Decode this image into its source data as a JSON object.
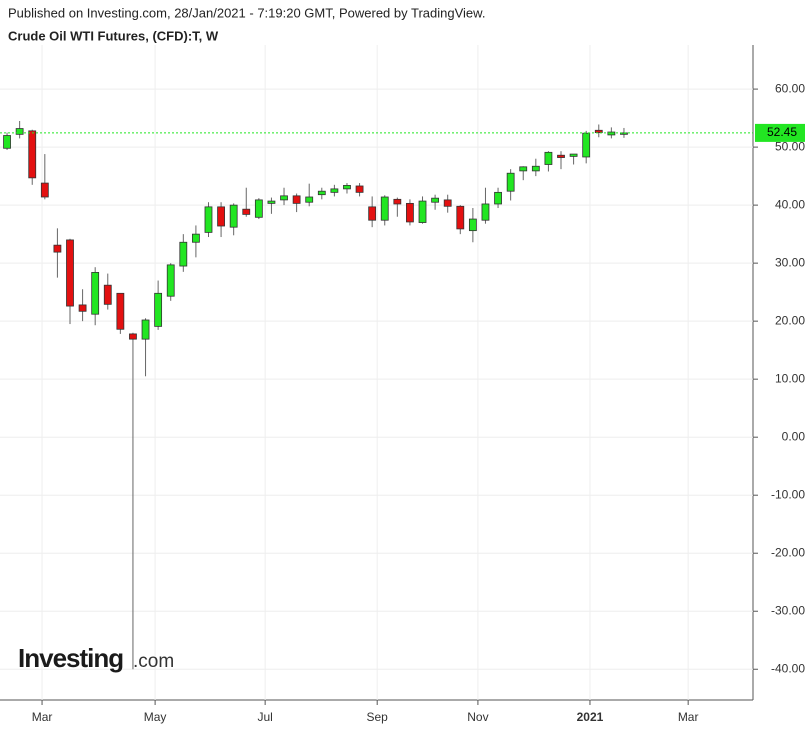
{
  "header": {
    "published": "Published on Investing.com, 28/Jan/2021 - 7:19:20 GMT, Powered by TradingView.",
    "title": "Crude Oil WTI Futures, (CFD):T, W"
  },
  "logo": {
    "main": "Investing",
    "suffix": ".com"
  },
  "chart_data": {
    "type": "candlestick",
    "categories": [
      null,
      null,
      null,
      null,
      null,
      null,
      null,
      null,
      null,
      null,
      null,
      null,
      null,
      null,
      null,
      null,
      null,
      null,
      null,
      null,
      null,
      null,
      null,
      null,
      null,
      null,
      null,
      null,
      null,
      null,
      null,
      null,
      null,
      null,
      null,
      null,
      null,
      null,
      null,
      null,
      null,
      null,
      null,
      null,
      null,
      null,
      null,
      null,
      null,
      null
    ],
    "open": [
      49.8,
      52.2,
      52.8,
      43.8,
      33.1,
      34,
      22.8,
      21.2,
      26.2,
      24.8,
      17.8,
      16.9,
      19.1,
      24.3,
      29.5,
      33.6,
      35.3,
      39.7,
      36.2,
      39.3,
      37.9,
      40.3,
      40.9,
      41.6,
      40.5,
      41.8,
      42.2,
      42.8,
      43.3,
      39.7,
      37.4,
      41,
      40.3,
      37,
      40.5,
      40.9,
      39.8,
      35.6,
      37.4,
      40.2,
      42.4,
      45.9,
      45.9,
      47,
      48.6,
      48.4,
      48.3,
      52.9,
      52.1,
      52.2
    ],
    "high": [
      52.5,
      54.5,
      53,
      48.8,
      36,
      34.2,
      25.5,
      29.3,
      28.2,
      24.8,
      18,
      20.5,
      27,
      30,
      35,
      36.5,
      40.5,
      40.5,
      40.3,
      43,
      41.2,
      41.3,
      43,
      42,
      43.7,
      43,
      43.5,
      43.8,
      43.8,
      41.5,
      41.7,
      41.3,
      41,
      41.5,
      41.8,
      41.8,
      40,
      39.5,
      43,
      43,
      46.2,
      46.7,
      48,
      49.3,
      49.3,
      48.7,
      52.8,
      53.9,
      53.4,
      53.3
    ],
    "low": [
      49.5,
      51.5,
      43.5,
      41,
      27.5,
      19.5,
      20,
      19.3,
      22,
      17.8,
      -40,
      10.5,
      18.5,
      23.5,
      28.5,
      31,
      34.5,
      34.5,
      34.8,
      38,
      37.6,
      38.5,
      40,
      38.8,
      39.8,
      41,
      41.5,
      42,
      41.5,
      36.2,
      36.5,
      38,
      36.5,
      36.8,
      39.2,
      38.7,
      35,
      33.6,
      36.8,
      39.5,
      40.8,
      44.3,
      45,
      45.8,
      46.2,
      47,
      47.2,
      51.7,
      51.5,
      51.6
    ],
    "close": [
      52,
      53.2,
      44.7,
      41.4,
      31.9,
      22.6,
      21.7,
      28.4,
      22.9,
      18.6,
      16.9,
      20.2,
      24.8,
      29.7,
      33.6,
      35,
      39.7,
      36.4,
      40,
      38.4,
      40.9,
      40.7,
      41.6,
      40.3,
      41.4,
      42.4,
      42.8,
      43.4,
      42.2,
      37.4,
      41.4,
      40.2,
      37.1,
      40.7,
      41.2,
      39.8,
      35.9,
      37.6,
      40.2,
      42.2,
      45.5,
      46.6,
      46.7,
      49.1,
      48.2,
      48.8,
      52.4,
      52.5,
      52.6,
      52.45
    ],
    "up_color": "#22e622",
    "down_color": "#e31010",
    "last_price": {
      "value": 52.45,
      "label": "52.45"
    },
    "last_price_color": "#22e622",
    "xlim": [
      -0.56,
      59.25
    ],
    "xticks": [
      {
        "value": 2.78,
        "label": "Mar"
      },
      {
        "value": 11.76,
        "label": "May"
      },
      {
        "value": 20.5,
        "label": "Jul"
      },
      {
        "value": 29.4,
        "label": "Sep"
      },
      {
        "value": 37.4,
        "label": "Nov"
      },
      {
        "value": 46.3,
        "label": "2021"
      },
      {
        "value": 54.1,
        "label": "Mar"
      }
    ],
    "ylim": [
      -45.3,
      67.6
    ],
    "yticks": [
      {
        "value": 60,
        "label": "60.00"
      },
      {
        "value": 50,
        "label": "50.00"
      },
      {
        "value": 40,
        "label": "40.00"
      },
      {
        "value": 30,
        "label": "30.00"
      },
      {
        "value": 20,
        "label": "20.00"
      },
      {
        "value": 10,
        "label": "10.00"
      },
      {
        "value": 0,
        "label": "0.00"
      },
      {
        "value": -10,
        "label": "-10.00"
      },
      {
        "value": -20,
        "label": "-20.00"
      },
      {
        "value": -30,
        "label": "-30.00"
      },
      {
        "value": -40,
        "label": "-40.00"
      }
    ],
    "grid": true
  }
}
